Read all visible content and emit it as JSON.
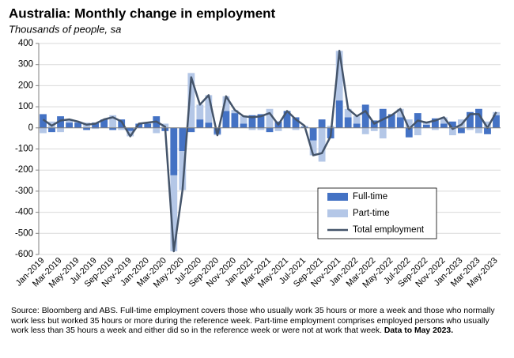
{
  "chart_data": {
    "type": "stacked-bar-line",
    "title": "Australia: Monthly change in employment",
    "subtitle": "Thousands of people, sa",
    "categories": [
      "Jan-2019",
      null,
      "Mar-2019",
      null,
      "May-2019",
      null,
      "Jul-2019",
      null,
      "Sep-2019",
      null,
      "Nov-2019",
      null,
      "Jan-2020",
      null,
      "Mar-2020",
      null,
      "May-2020",
      null,
      "Jul-2020",
      null,
      "Sep-2020",
      null,
      "Nov-2020",
      null,
      "Jan-2021",
      null,
      "Mar-2021",
      null,
      "May-2021",
      null,
      "Jul-2021",
      null,
      "Sep-2021",
      null,
      "Nov-2021",
      null,
      "Jan-2022",
      null,
      "Mar-2022",
      null,
      "May-2022",
      null,
      "Jul-2022",
      null,
      "Sep-2022",
      null,
      "Nov-2022",
      null,
      "Jan-2023",
      null,
      "Mar-2023",
      null,
      "May-2023"
    ],
    "series": [
      {
        "name": "Full-time",
        "kind": "bar",
        "color": "#4472c4",
        "values": [
          65,
          -20,
          55,
          25,
          25,
          -10,
          25,
          40,
          -10,
          40,
          -15,
          20,
          20,
          55,
          -15,
          -225,
          -110,
          -20,
          40,
          25,
          -30,
          80,
          70,
          20,
          60,
          65,
          -20,
          30,
          80,
          50,
          5,
          -60,
          40,
          -50,
          130,
          50,
          20,
          110,
          35,
          90,
          65,
          50,
          -45,
          70,
          15,
          45,
          20,
          30,
          -25,
          75,
          90,
          -30,
          60
        ]
      },
      {
        "name": "Part-time",
        "kind": "bar",
        "color": "#b4c7e7",
        "values": [
          -25,
          30,
          -20,
          15,
          5,
          25,
          -5,
          0,
          60,
          -10,
          -25,
          0,
          5,
          -25,
          20,
          -360,
          -185,
          260,
          70,
          130,
          -5,
          70,
          15,
          35,
          -10,
          -10,
          90,
          -15,
          0,
          -10,
          5,
          -70,
          -160,
          10,
          235,
          40,
          35,
          -30,
          -15,
          -50,
          -5,
          40,
          40,
          -35,
          10,
          -10,
          30,
          -35,
          40,
          -10,
          -25,
          30,
          15
        ]
      },
      {
        "name": "Total employment",
        "kind": "line",
        "color": "#44546a",
        "values": [
          40,
          10,
          35,
          40,
          30,
          15,
          20,
          40,
          50,
          30,
          -40,
          20,
          25,
          30,
          5,
          -585,
          -295,
          240,
          110,
          155,
          -35,
          150,
          85,
          55,
          50,
          55,
          70,
          15,
          80,
          40,
          10,
          -130,
          -120,
          -40,
          365,
          90,
          55,
          80,
          20,
          40,
          60,
          90,
          -5,
          35,
          25,
          35,
          50,
          -5,
          15,
          65,
          65,
          0,
          75
        ]
      }
    ],
    "ylim": [
      -600,
      400
    ],
    "yticks": [
      -600,
      -500,
      -400,
      -300,
      -200,
      -100,
      0,
      100,
      200,
      300,
      400
    ],
    "grid": true,
    "legend": "lower-right",
    "source": "Source: Bloomberg and ABS.  Full-time employment covers those who usually work 35 hours or more a week and those who normally work less but worked 35 hours or  more during the reference week.  Part-time employment comprises employed persons who usually work less than 35 hours a week and either did so in the reference week or were not at work that week.",
    "note": "Data to May 2023."
  }
}
